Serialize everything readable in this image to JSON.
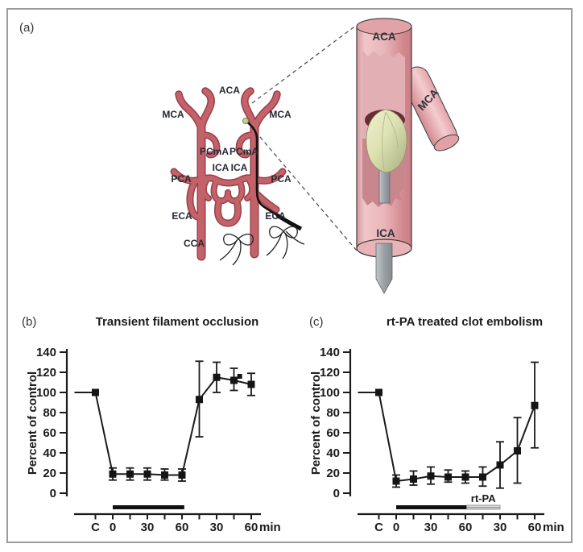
{
  "figure_caption_labels": {
    "a": "(a)",
    "b": "(b)",
    "c": "(c)"
  },
  "panel_a": {
    "artery_labels": {
      "aca": "ACA",
      "mca_left": "MCA",
      "mca_right": "MCA",
      "pcma_left": "PCmA",
      "pcma_right": "PCmA",
      "ica_left": "ICA",
      "ica_right": "ICA",
      "pca_left": "PCA",
      "pca_right": "PCA",
      "eca_left": "ECA",
      "eca_right": "ECA",
      "cca": "CCA"
    },
    "inset_labels": {
      "aca": "ACA",
      "mca": "MCA",
      "ica": "ICA"
    }
  },
  "colors": {
    "artery_fill": "#c4626a",
    "artery_outline": "#9a3f47",
    "vessel_pink": "#eebcc0",
    "vessel_interior": "#cd8d93",
    "vessel_dark_rim": "#682c33",
    "clot": "#dde2b4",
    "filament_gray": "#9aa0a5",
    "chart_ink": "#1b1b1b",
    "frame_border": "#9c9c9c"
  },
  "chart_data": [
    {
      "type": "line",
      "panel": "b",
      "title": "Transient filament occlusion",
      "ylabel": "Percent of control",
      "xunit": "min",
      "ylim": [
        0,
        140
      ],
      "ytick_step": 20,
      "xtick_labels": [
        {
          "x": -15,
          "label": "C"
        },
        {
          "x": 0,
          "label": "0"
        },
        {
          "x": 30,
          "label": "30"
        },
        {
          "x": 60,
          "label": "60"
        },
        {
          "x": 90,
          "label": "30"
        },
        {
          "x": 120,
          "label": "60"
        }
      ],
      "xtick_minor": [
        15,
        45,
        75,
        105
      ],
      "points": [
        {
          "x": -15,
          "label": "C",
          "y": 100
        },
        {
          "x": 0,
          "y": 19,
          "lo": 13,
          "hi": 25
        },
        {
          "x": 15,
          "y": 19,
          "lo": 13,
          "hi": 25
        },
        {
          "x": 30,
          "y": 19,
          "lo": 13,
          "hi": 25
        },
        {
          "x": 45,
          "y": 18,
          "lo": 13,
          "hi": 24
        },
        {
          "x": 60,
          "y": 18,
          "lo": 12,
          "hi": 24
        },
        {
          "x": 75,
          "y": 93,
          "lo": 56,
          "hi": 131
        },
        {
          "x": 90,
          "y": 115,
          "lo": 100,
          "hi": 130
        },
        {
          "x": 105,
          "y": 112,
          "lo": 102,
          "hi": 124
        },
        {
          "x": 110,
          "y": 116,
          "size": 6,
          "connect": false
        },
        {
          "x": 120,
          "y": 108,
          "lo": 97,
          "hi": 119
        }
      ],
      "bars": [
        {
          "from": 0,
          "to": 62,
          "style": "solid"
        }
      ]
    },
    {
      "type": "line",
      "panel": "c",
      "title": "rt-PA treated clot embolism",
      "ylabel": "Percent of control",
      "xunit": "min",
      "ylim": [
        0,
        140
      ],
      "ytick_step": 20,
      "xtick_labels": [
        {
          "x": -15,
          "label": "C"
        },
        {
          "x": 0,
          "label": "0"
        },
        {
          "x": 30,
          "label": "30"
        },
        {
          "x": 60,
          "label": "60"
        },
        {
          "x": 90,
          "label": "30"
        },
        {
          "x": 120,
          "label": "60"
        }
      ],
      "xtick_minor": [
        15,
        45,
        75,
        105
      ],
      "points": [
        {
          "x": -15,
          "label": "C",
          "y": 100
        },
        {
          "x": 0,
          "y": 12,
          "lo": 6,
          "hi": 18
        },
        {
          "x": 15,
          "y": 14,
          "lo": 8,
          "hi": 22
        },
        {
          "x": 30,
          "y": 17,
          "lo": 9,
          "hi": 26
        },
        {
          "x": 45,
          "y": 16,
          "lo": 11,
          "hi": 23
        },
        {
          "x": 60,
          "y": 16,
          "lo": 10,
          "hi": 22
        },
        {
          "x": 75,
          "y": 16,
          "lo": 7,
          "hi": 26
        },
        {
          "x": 90,
          "y": 28,
          "lo": 5,
          "hi": 51
        },
        {
          "x": 105,
          "y": 42,
          "lo": 10,
          "hi": 75
        },
        {
          "x": 120,
          "y": 87,
          "lo": 45,
          "hi": 130
        }
      ],
      "bars": [
        {
          "from": 0,
          "to": 61,
          "style": "solid"
        },
        {
          "from": 61,
          "to": 90,
          "style": "striped",
          "label": "rt-PA"
        }
      ]
    }
  ]
}
